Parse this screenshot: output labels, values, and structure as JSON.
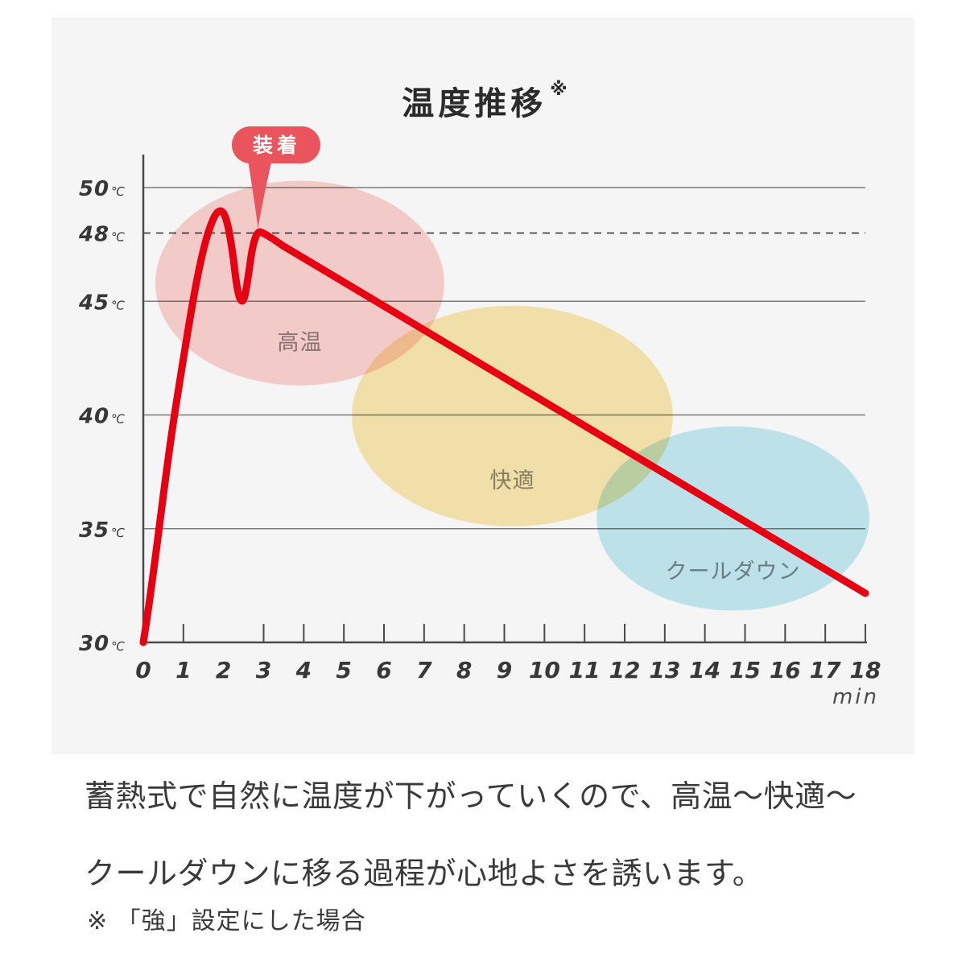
{
  "chart": {
    "title": "温度推移",
    "title_note_mark": "※",
    "badge": {
      "label": "装着",
      "color": "#ea545c"
    },
    "panel_color": "#f5f5f5"
  },
  "chart_data": {
    "type": "line",
    "title": "温度推移",
    "xlabel": "min",
    "ylabel": "℃",
    "x_range": [
      0,
      18
    ],
    "y_range": [
      30,
      50
    ],
    "grid": true,
    "x_ticks": [
      "0",
      "1",
      "2",
      "3",
      "4",
      "5",
      "6",
      "7",
      "8",
      "9",
      "10",
      "11",
      "12",
      "13",
      "14",
      "15",
      "16",
      "17",
      "18"
    ],
    "x_tick_marks": [
      1,
      3,
      4,
      5,
      6,
      7,
      8,
      9,
      10,
      11,
      12,
      13,
      14,
      15,
      16,
      17,
      18
    ],
    "y_ticks": [
      {
        "label": "50",
        "unit": "℃",
        "value": 50
      },
      {
        "label": "48",
        "unit": "℃",
        "value": 48
      },
      {
        "label": "45",
        "unit": "℃",
        "value": 45
      },
      {
        "label": "40",
        "unit": "℃",
        "value": 40
      },
      {
        "label": "35",
        "unit": "℃",
        "value": 35
      },
      {
        "label": "30",
        "unit": "℃",
        "value": 30
      }
    ],
    "y_gridlines_solid": [
      50,
      45,
      40,
      35
    ],
    "y_gridline_dashed": 48,
    "series": [
      {
        "name": "温度",
        "color": "#e60012",
        "points": [
          [
            0,
            30
          ],
          [
            1,
            44
          ],
          [
            2,
            49
          ],
          [
            2.4,
            45
          ],
          [
            2.8,
            48
          ],
          [
            5,
            45.7
          ],
          [
            10,
            40.4
          ],
          [
            15,
            35.2
          ],
          [
            18,
            32
          ]
        ]
      }
    ],
    "annotation": {
      "label": "装着",
      "x": 2.8,
      "y": 48
    },
    "zones": [
      {
        "label": "高温",
        "color": "#fcd4d1",
        "x": [
          0.3,
          7.5
        ],
        "y": [
          41.3,
          50.3
        ]
      },
      {
        "label": "快適",
        "color": "#fbe9b0",
        "x": [
          5.2,
          13.2
        ],
        "y": [
          35.1,
          44.8
        ]
      },
      {
        "label": "クールダウン",
        "color": "#c4ebf2",
        "x": [
          11.3,
          18.1
        ],
        "y": [
          31.4,
          39.5
        ]
      }
    ]
  },
  "description": {
    "line1": "蓄熱式で自然に温度が下がっていくので、高温〜快適〜",
    "line2": "クールダウンに移る過程が心地よさを誘います。",
    "note": "※ 「強」設定にした場合"
  }
}
